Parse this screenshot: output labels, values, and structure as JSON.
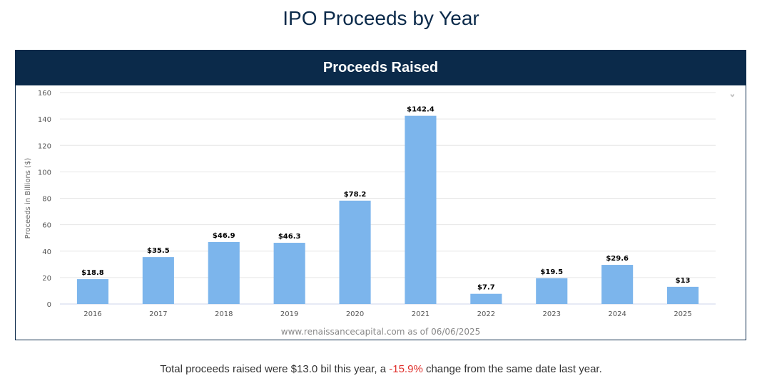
{
  "page_title": "IPO Proceeds by Year",
  "panel": {
    "title": "Proceeds Raised",
    "menu_icon": "chevron-double-down-icon"
  },
  "chart_data": {
    "type": "bar",
    "title": "Proceeds Raised",
    "categories": [
      "2016",
      "2017",
      "2018",
      "2019",
      "2020",
      "2021",
      "2022",
      "2023",
      "2024",
      "2025"
    ],
    "values": [
      18.8,
      35.5,
      46.9,
      46.3,
      78.2,
      142.4,
      7.7,
      19.5,
      29.6,
      13
    ],
    "data_labels": [
      "$18.8",
      "$35.5",
      "$46.9",
      "$46.3",
      "$78.2",
      "$142.4",
      "$7.7",
      "$19.5",
      "$29.6",
      "$13"
    ],
    "ylabel": "Proceeds in Billions ($)",
    "xlabel": "",
    "ylim": [
      0,
      160
    ],
    "yticks": [
      0,
      20,
      40,
      60,
      80,
      100,
      120,
      140,
      160
    ],
    "grid": true,
    "credit": "www.renaissancecapital.com as of 06/06/2025",
    "bar_color": "#7cb5ec"
  },
  "footer": {
    "text_before": "Total proceeds raised were $13.0 bil this year, a ",
    "change": "-15.9%",
    "text_after": " change from the same date last year."
  }
}
